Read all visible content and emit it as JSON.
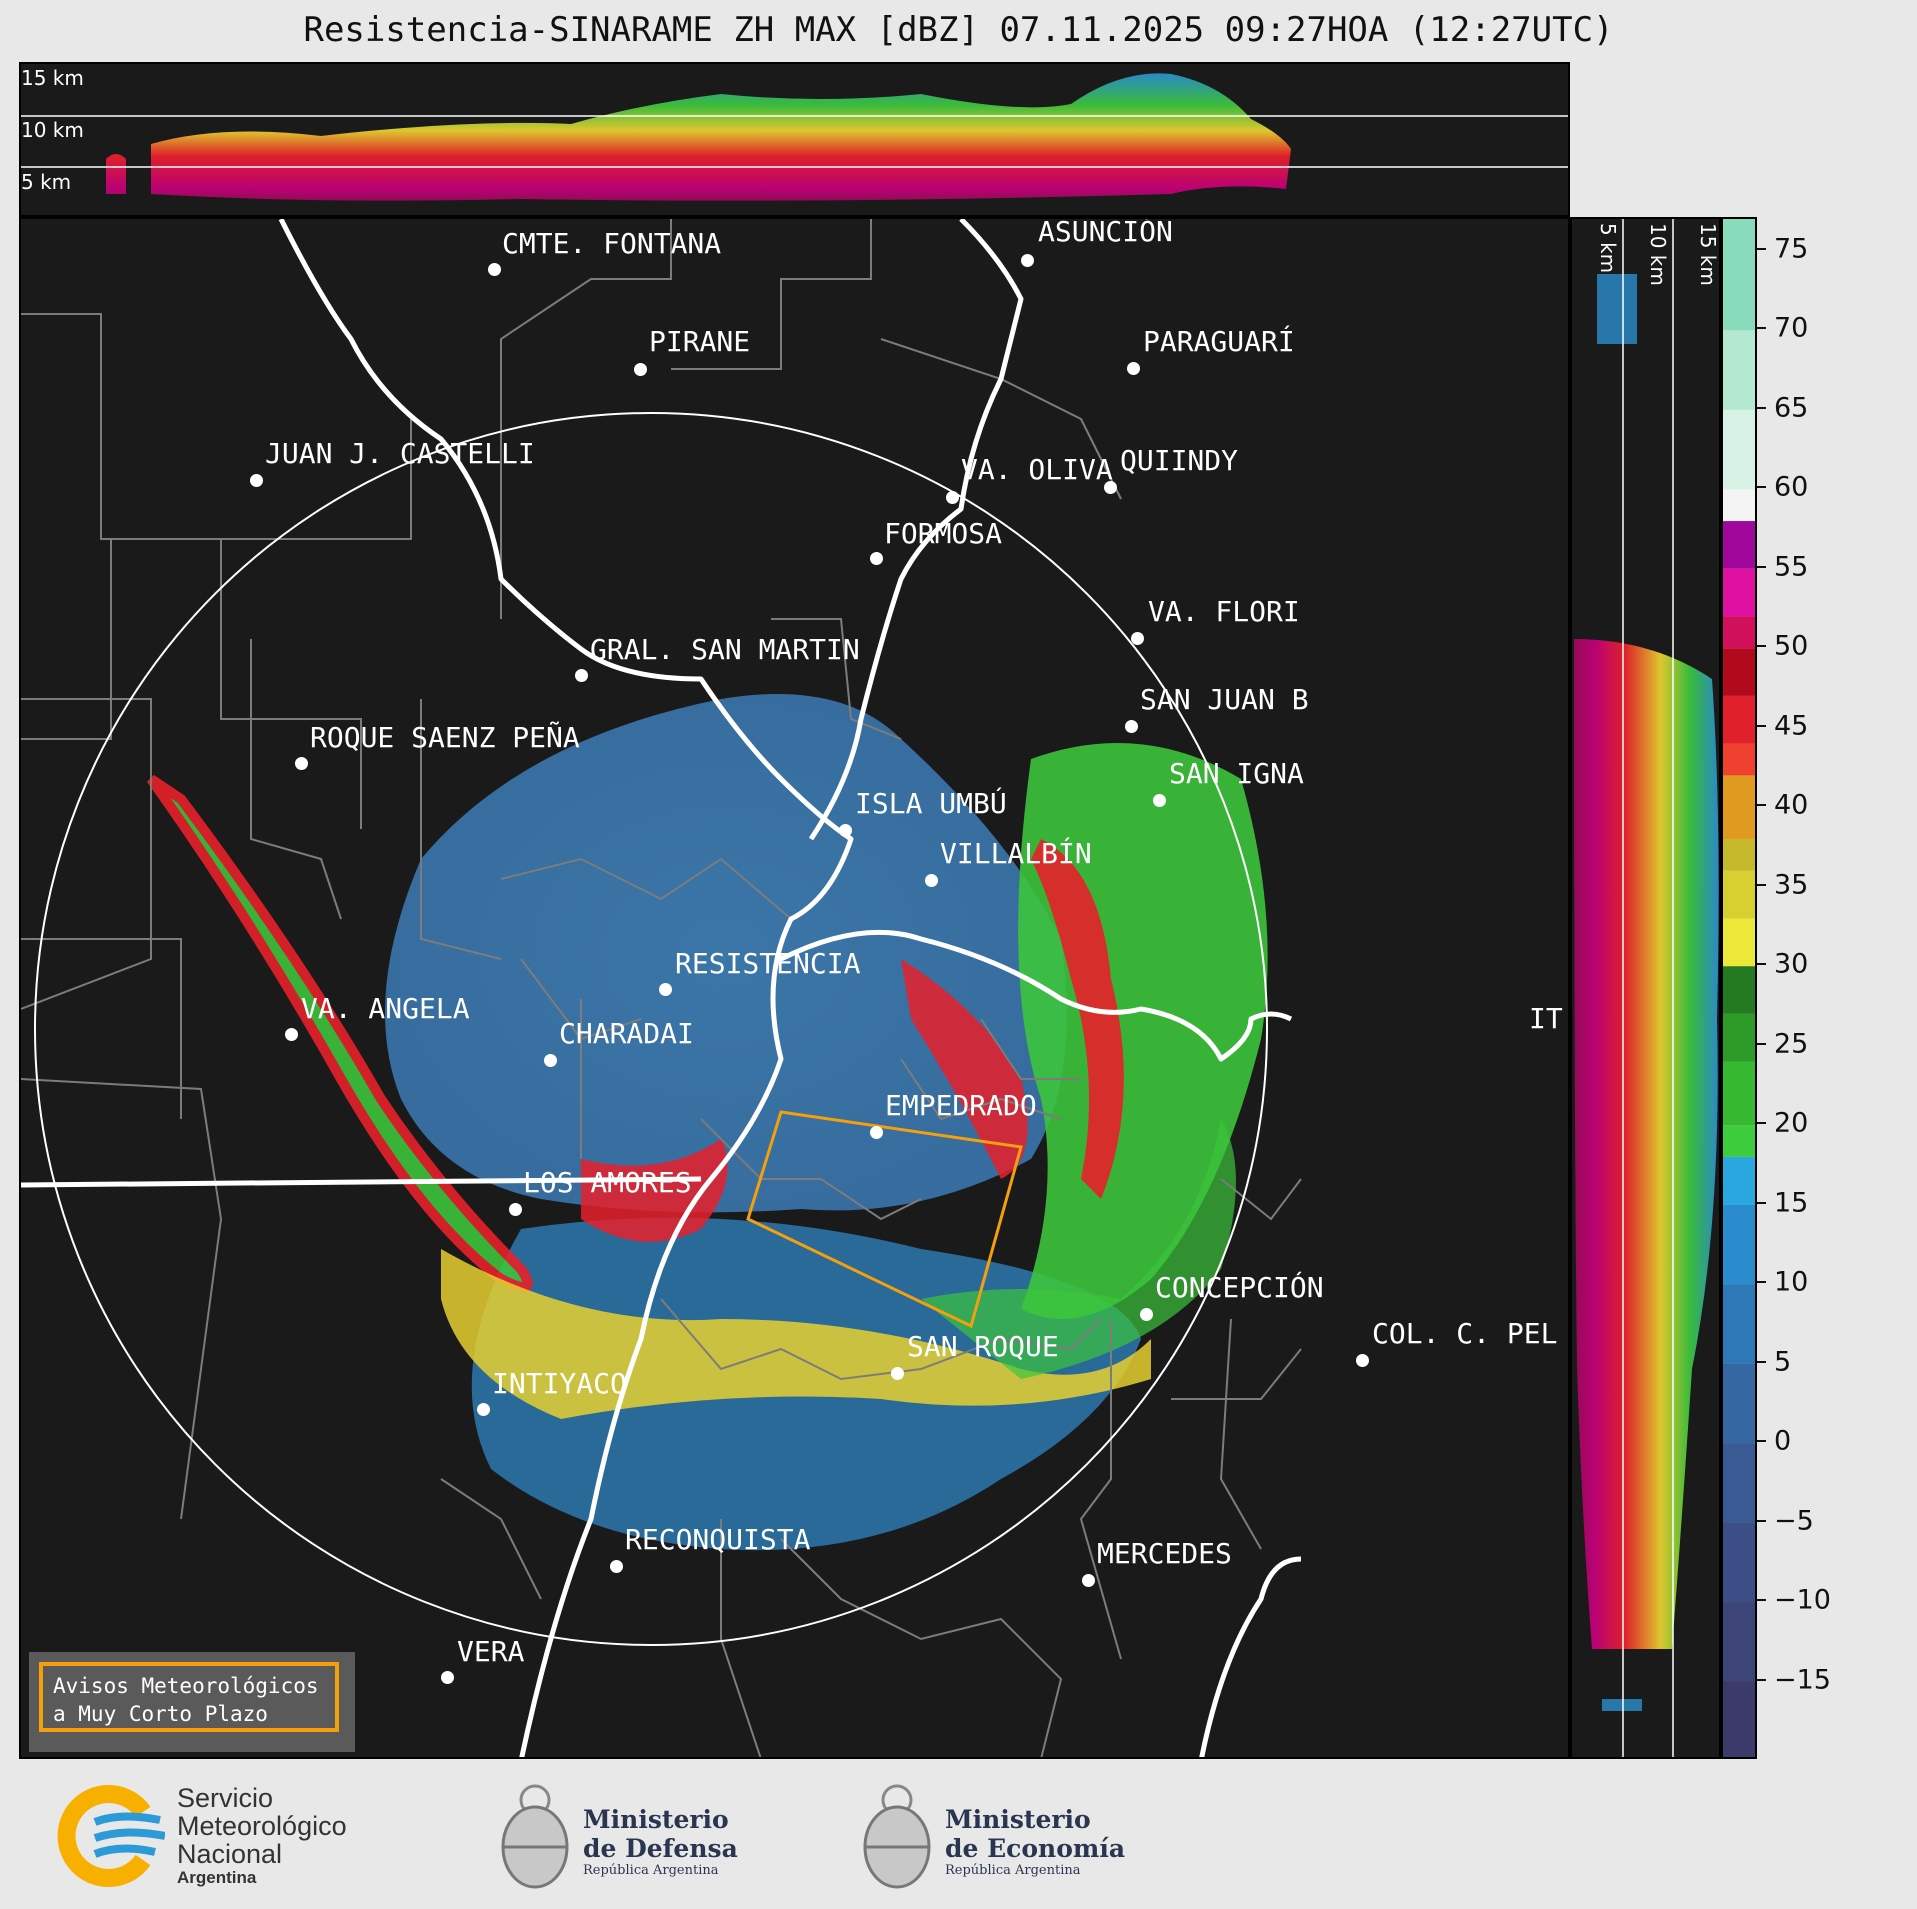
{
  "title": "Resistencia-SINARAME ZH MAX [dBZ] 07.11.2025 09:27HOA (12:27UTC)",
  "profile_top": {
    "altitude_labels": [
      "15 km",
      "10 km",
      "5 km"
    ]
  },
  "profile_side": {
    "altitude_labels": [
      "5 km",
      "10 km",
      "15 km"
    ]
  },
  "colorbar": {
    "unit": "dBZ",
    "ticks": [
      "75",
      "70",
      "65",
      "60",
      "55",
      "50",
      "45",
      "40",
      "35",
      "30",
      "25",
      "20",
      "15",
      "10",
      "5",
      "0",
      "−5",
      "−10",
      "−15"
    ],
    "min": -20,
    "max": 77
  },
  "places": [
    "CMTE. FONTANA",
    "ASUNCIÓN",
    "PIRANE",
    "PARAGUARÍ",
    "JUAN J. CASTELLI",
    "VA. OLIVA",
    "QUIINDY",
    "FORMOSA",
    "VA. FLORI",
    "GRAL. SAN MARTIN",
    "SAN JUAN B",
    "ROQUE SAENZ PEÑA",
    "SAN IGNA",
    "ISLA UMBÚ",
    "VILLALBÍN",
    "RESISTENCIA",
    "IT",
    "VA. ANGELA",
    "CHARADAI",
    "EMPEDRADO",
    "LOS AMORES",
    "CONCEPCIÓN",
    "COL. C. PEL",
    "SAN ROQUE",
    "INTIYACO",
    "RECONQUISTA",
    "MERCEDES",
    "VERA"
  ],
  "notice": {
    "line1": "Avisos Meteorológicos",
    "line2": "a Muy Corto Plazo"
  },
  "logos": {
    "smn": {
      "line1": "Servicio",
      "line2": "Meteorológico",
      "line3": "Nacional",
      "line4": "Argentina"
    },
    "defensa": {
      "line1": "Ministerio",
      "line2": "de Defensa",
      "line3": "República Argentina"
    },
    "economia": {
      "line1": "Ministerio",
      "line2": "de Economía",
      "line3": "República Argentina"
    }
  },
  "colors": {
    "background": "#1a1a1a",
    "warning_polygon": "#f4a00c",
    "range_ring": "#ffffff",
    "borders": "#808080"
  }
}
